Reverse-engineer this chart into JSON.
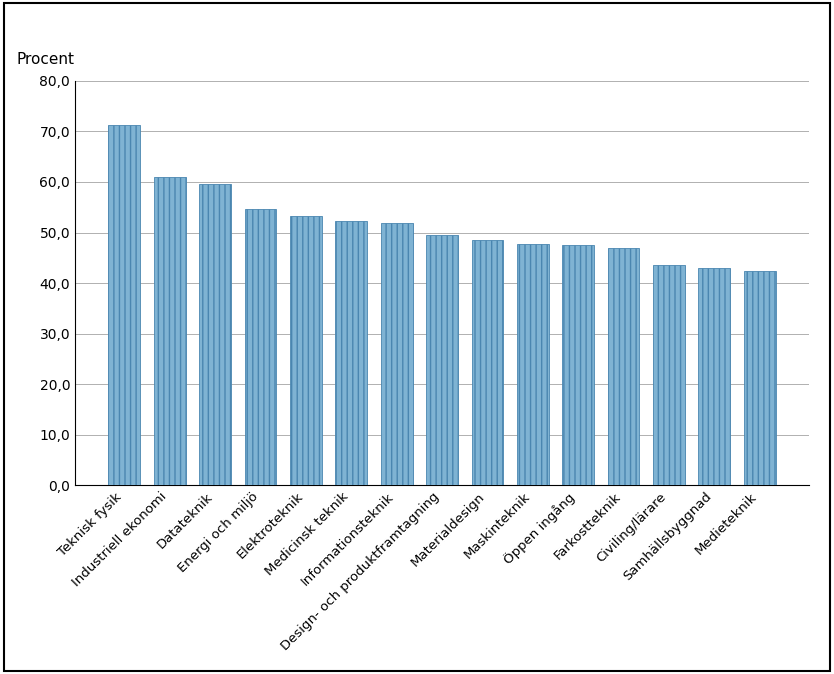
{
  "categories": [
    "Teknisk fysik",
    "Industriell ekonomi",
    "Datateknik",
    "Energi och miljö",
    "Elektroteknik",
    "Medicinsk teknik",
    "Informationsteknik",
    "Design- och produktframtagning",
    "Materialdesign",
    "Maskinteknik",
    "Öppen ingång",
    "Farkostteknik",
    "Civiling/lärare",
    "Samhällsbyggnad",
    "Medieteknik"
  ],
  "values": [
    71.2,
    61.0,
    59.6,
    54.7,
    53.3,
    52.3,
    51.8,
    49.5,
    48.6,
    47.8,
    47.5,
    47.0,
    43.5,
    43.0,
    42.3
  ],
  "bar_color_face": "#7fb3d3",
  "bar_color_edge": "#4a86b0",
  "bar_hatch": "|||",
  "procent_label": "Procent",
  "ylim": [
    0,
    80
  ],
  "yticks": [
    0,
    10,
    20,
    30,
    40,
    50,
    60,
    70,
    80
  ],
  "ytick_labels": [
    "0,0",
    "10,0",
    "20,0",
    "30,0",
    "40,0",
    "50,0",
    "60,0",
    "70,0",
    "80,0"
  ],
  "background_color": "#ffffff",
  "plot_bg_color": "#ffffff",
  "grid_color": "#b0b0b0",
  "border_color": "#000000"
}
